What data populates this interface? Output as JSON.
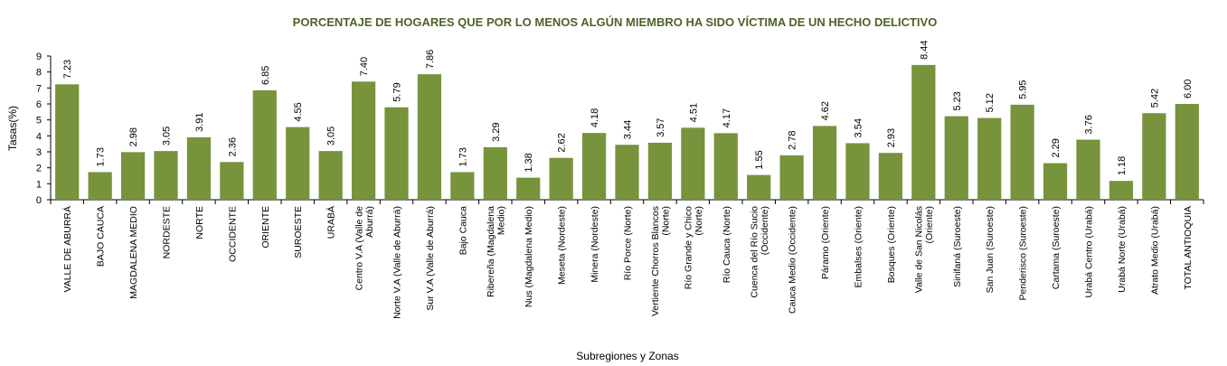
{
  "chart_data": {
    "type": "bar",
    "title": "PORCENTAJE DE HOGARES QUE POR LO MENOS ALGÚN MIEMBRO HA SIDO VÍCTIMA DE UN  HECHO DELICTIVO",
    "xlabel": "Subregiones y Zonas",
    "ylabel": "Tasas(%)",
    "ylim": [
      0,
      9
    ],
    "yticks": [
      "0",
      "1",
      "2",
      "3",
      "4",
      "5",
      "6",
      "7",
      "8",
      "9"
    ],
    "grid": false,
    "bar_color": "#77933c",
    "title_color": "#4f6228",
    "categories": [
      [
        "VALLE DE ABURRÁ"
      ],
      [
        "BAJO CAUCA"
      ],
      [
        "MAGDALENA MEDIO"
      ],
      [
        "NORDESTE"
      ],
      [
        "NORTE"
      ],
      [
        "OCCIDENTE"
      ],
      [
        "ORIENTE"
      ],
      [
        "SUROESTE"
      ],
      [
        "URABÁ"
      ],
      [
        "Centro V.A (Valle de",
        "Aburrá)"
      ],
      [
        "Norte V.A (Valle de Aburrá)"
      ],
      [
        "Sur V.A (Valle de Aburrá)"
      ],
      [
        "Bajo Cauca"
      ],
      [
        "Ribereña  (Magdalena",
        "Medio)"
      ],
      [
        "Nus  (Magdalena Medio)"
      ],
      [
        "Meseta  (Nordeste)"
      ],
      [
        "Minera  (Nordeste)"
      ],
      [
        "Río Porce   (Norte)"
      ],
      [
        "Vertiente Chorros Blancos",
        "(Norte)"
      ],
      [
        "Río Grande y Chico",
        "(Norte)"
      ],
      [
        "Río Cauca  (Norte)"
      ],
      [
        "Cuenca del Río Sucio",
        "(Occidente)"
      ],
      [
        "Cauca Medio  (Occidente)"
      ],
      [
        "Páramo   (Oriente)"
      ],
      [
        "Embalses  (Oriente)"
      ],
      [
        "Bosques  (Oriente)"
      ],
      [
        "Valle de San Nicolás",
        "(Oriente)"
      ],
      [
        "Sinifaná  (Suroeste)"
      ],
      [
        "San Juan  (Suroeste)"
      ],
      [
        "Penderisco  (Suroeste)"
      ],
      [
        "Cartama  (Suroeste)"
      ],
      [
        "Urabá Centro   (Urabá)"
      ],
      [
        "Urabá Norte  (Urabá)"
      ],
      [
        "Atrato Medio  (Urabá)"
      ],
      [
        "TOTAL ANTIOQUIA"
      ]
    ],
    "values": [
      7.23,
      1.73,
      2.98,
      3.05,
      3.91,
      2.36,
      6.85,
      4.55,
      3.05,
      7.4,
      5.79,
      7.86,
      1.73,
      3.29,
      1.38,
      2.62,
      4.18,
      3.44,
      3.57,
      4.51,
      4.17,
      1.55,
      2.78,
      4.62,
      3.54,
      2.93,
      8.44,
      5.23,
      5.12,
      5.95,
      2.29,
      3.76,
      1.18,
      5.42,
      6.0
    ],
    "labels": [
      "7.23",
      "1.73",
      "2.98",
      "3.05",
      "3.91",
      "2.36",
      "6.85",
      "4.55",
      "3.05",
      "7.40",
      "5.79",
      "7.86",
      "1.73",
      "3.29",
      "1.38",
      "2.62",
      "4.18",
      "3.44",
      "3.57",
      "4.51",
      "4.17",
      "1.55",
      "2.78",
      "4.62",
      "3.54",
      "2.93",
      "8.44",
      "5.23",
      "5.12",
      "5.95",
      "2.29",
      "3.76",
      "1.18",
      "5.42",
      "6.00"
    ]
  }
}
